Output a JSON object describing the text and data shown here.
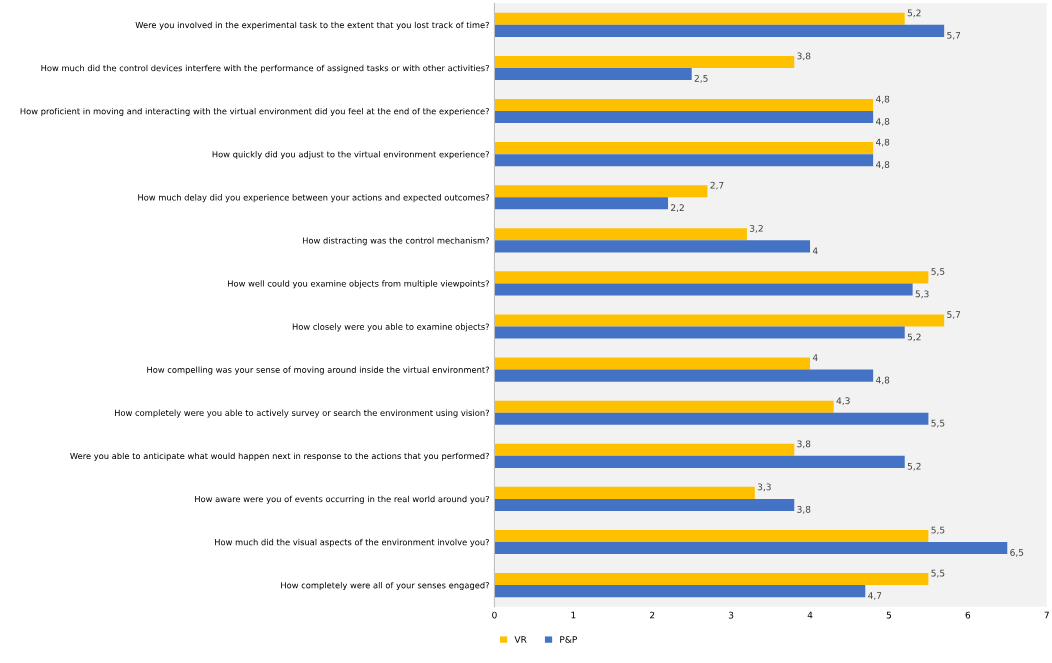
{
  "chart_data": {
    "type": "bar",
    "orientation": "horizontal",
    "categories": [
      "Were you involved in the experimental task to the extent that you lost track of time?",
      "How much did the control devices interfere with the performance of assigned tasks or with other activities?",
      "How proficient in moving and interacting with the virtual environment did you feel at the end of the experience?",
      "How quickly did you adjust to the virtual environment experience?",
      "How much delay did you experience between your actions and expected outcomes?",
      "How distracting was the control mechanism?",
      "How well could you examine objects from multiple viewpoints?",
      "How closely were you able to examine objects?",
      "How compelling was your sense of moving around inside the virtual environment?",
      "How completely were you able to actively survey or search the environment using vision?",
      "Were you able to anticipate what would happen next in response to the actions that you performed?",
      "How aware were you of events occurring in the real world around you?",
      "How much did the visual aspects of the environment involve you?",
      "How completely were all of your senses engaged?"
    ],
    "series": [
      {
        "name": "VR",
        "color": "#ffc000",
        "values": [
          5.2,
          3.8,
          4.8,
          4.8,
          2.7,
          3.2,
          5.5,
          5.7,
          4,
          4.3,
          3.8,
          3.3,
          5.5,
          5.5
        ],
        "value_labels": [
          "5,2",
          "3,8",
          "4,8",
          "4,8",
          "2,7",
          "3,2",
          "5,5",
          "5,7",
          "4",
          "4,3",
          "3,8",
          "3,3",
          "5,5",
          "5,5"
        ]
      },
      {
        "name": "P&P",
        "color": "#4472c4",
        "values": [
          5.7,
          2.5,
          4.8,
          4.8,
          2.2,
          4,
          5.3,
          5.2,
          4.8,
          5.5,
          5.2,
          3.8,
          6.5,
          4.7
        ],
        "value_labels": [
          "5,7",
          "2,5",
          "4,8",
          "4,8",
          "2,2",
          "4",
          "5,3",
          "5,2",
          "4,8",
          "5,5",
          "5,2",
          "3,8",
          "6,5",
          "4,7"
        ]
      }
    ],
    "xlim": [
      0,
      7
    ],
    "xticks": [
      0,
      1,
      2,
      3,
      4,
      5,
      6,
      7
    ],
    "grid": false,
    "legend": "bottom"
  }
}
